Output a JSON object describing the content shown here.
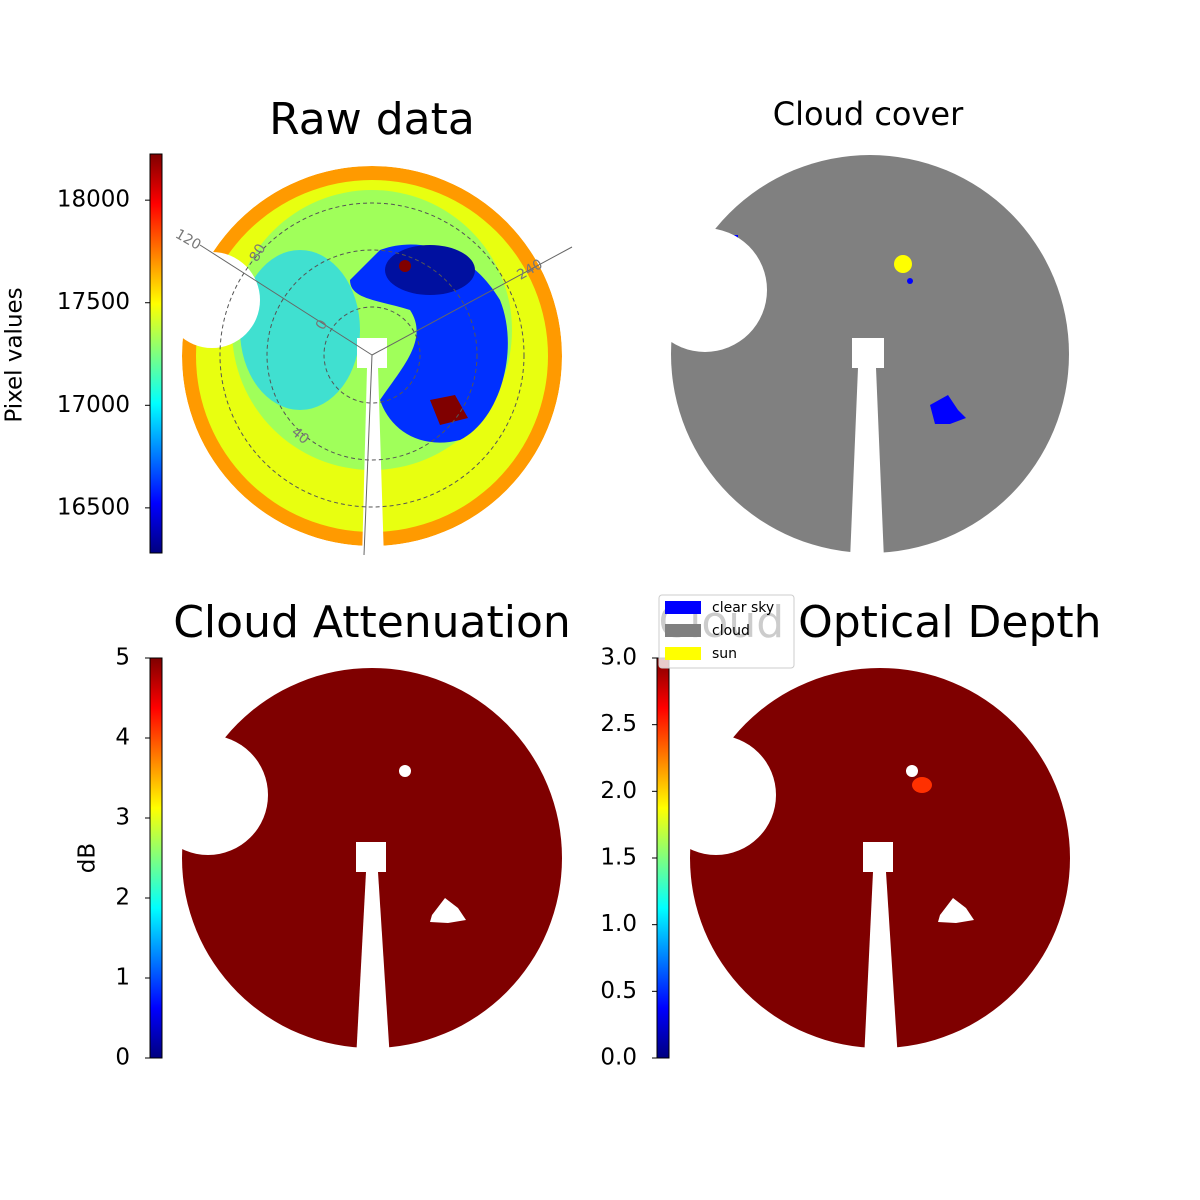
{
  "chart_data": [
    {
      "type": "image",
      "title": "Raw data",
      "colormap": "jet",
      "colorbar": {
        "label": "Pixel values",
        "lim": [
          16280,
          18225
        ],
        "ticks": [
          16500,
          17000,
          17500,
          18000
        ]
      },
      "annotations": [
        "120",
        "80",
        "240",
        "0",
        "40"
      ]
    },
    {
      "type": "categorical-image",
      "title": "Cloud cover",
      "series": [
        {
          "name": "clear sky",
          "color": "#0000ff"
        },
        {
          "name": "cloud",
          "color": "#808080"
        },
        {
          "name": "sun",
          "color": "#ffff00"
        }
      ]
    },
    {
      "type": "image",
      "title": "Cloud Attenuation",
      "colormap": "jet",
      "colorbar": {
        "label": "dB",
        "lim": [
          0,
          5
        ],
        "ticks": [
          0,
          1,
          2,
          3,
          4,
          5
        ]
      }
    },
    {
      "type": "image",
      "title": "Cloud Optical Depth",
      "colormap": "jet",
      "colorbar": {
        "lim": [
          0,
          3
        ],
        "ticks": [
          {
            "value": 0,
            "label": "0.0"
          },
          0.5,
          {
            "value": 1,
            "label": "1.0"
          },
          1.5,
          {
            "value": 2,
            "label": "2.0"
          },
          2.5,
          {
            "value": 3,
            "label": "3.0"
          }
        ]
      }
    }
  ]
}
